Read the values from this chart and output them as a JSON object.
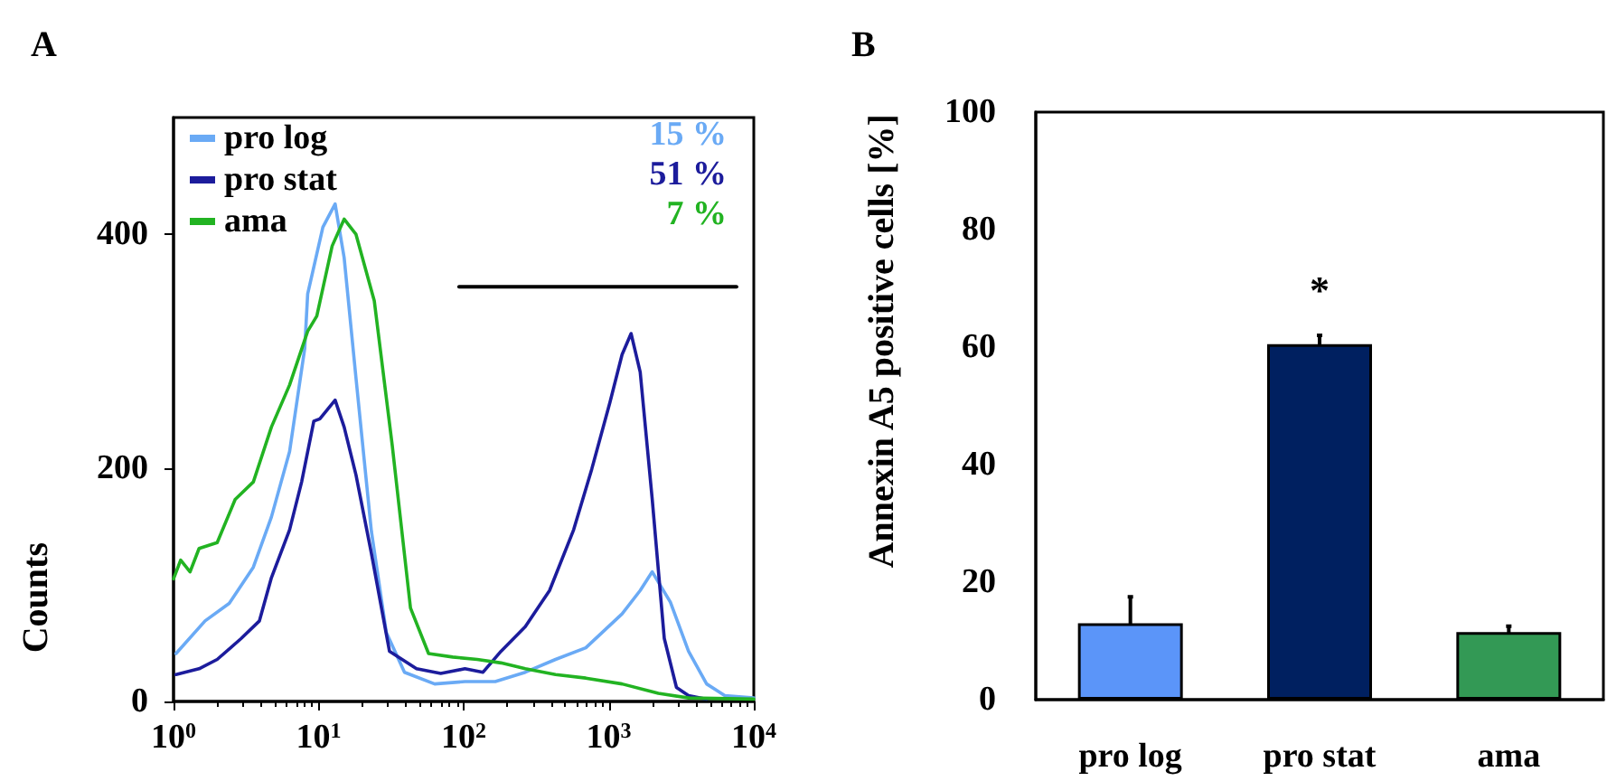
{
  "chart_data": [
    {
      "type": "line",
      "title": "A",
      "ylabel": "Counts",
      "xlim": [
        1,
        10000
      ],
      "ylim": [
        0,
        500
      ],
      "log": "x",
      "xticks": [
        {
          "value": 1,
          "label": "10$^{0}$"
        },
        {
          "value": 10,
          "label": "10$^{1}$"
        },
        {
          "value": 100,
          "label": "10$^{2}$"
        },
        {
          "value": 1000,
          "label": "10$^{3}$"
        },
        {
          "value": 10000,
          "label": "10$^{4}$"
        }
      ],
      "yticks": [
        0,
        200,
        400
      ],
      "grid": false,
      "legend": "top left",
      "marker": "none",
      "annotations": [
        "15 %",
        "51 %",
        "7 %"
      ],
      "series": [
        {
          "name": "pro log",
          "color": "#6aaaf5",
          "x": [
            1.04,
            1.65,
            2.42,
            3.55,
            4.73,
            6.31,
            8.02,
            8.41,
            10.7,
            13.0,
            15.0,
            18.1,
            23.1,
            29.3,
            39.1,
            63.1,
            102,
            165,
            266,
            430,
            695,
            1236,
            1648,
            1995,
            2661,
            3548,
            4732,
            6310,
            10000
          ],
          "values": [
            41,
            69,
            84,
            115,
            158,
            214,
            302,
            349,
            406,
            426,
            380,
            277,
            146,
            59,
            25,
            15,
            17,
            17,
            25,
            36,
            46,
            75,
            95,
            111,
            85,
            43,
            15,
            5,
            3
          ]
        },
        {
          "name": "pro stat",
          "color": "#1c1c9c",
          "x": [
            1.04,
            1.5,
            2.0,
            2.93,
            3.91,
            4.73,
            6.31,
            7.64,
            9.27,
            10.2,
            13.0,
            15.0,
            18.1,
            23.1,
            30.8,
            47.3,
            69.5,
            102,
            136,
            181,
            266,
            391,
            573,
            764,
            1019,
            1236,
            1426,
            1648,
            1995,
            2415,
            2931,
            3548,
            4732
          ],
          "values": [
            23,
            28,
            36,
            54,
            69,
            106,
            147,
            188,
            240,
            242,
            258,
            235,
            194,
            127,
            43,
            28,
            24,
            28,
            25,
            43,
            64,
            95,
            147,
            199,
            256,
            297,
            315,
            282,
            173,
            54,
            12,
            5,
            2
          ]
        },
        {
          "name": "ama",
          "color": "#22b322",
          "x": [
            1,
            1.12,
            1.3,
            1.5,
            2.0,
            2.66,
            3.55,
            4.73,
            6.31,
            8.41,
            9.72,
            12.4,
            15.0,
            18.1,
            24.2,
            32.2,
            43.0,
            57.3,
            84.1,
            124,
            181,
            266,
            430,
            695,
            1236,
            2198,
            3548,
            10000
          ],
          "values": [
            105,
            121,
            111,
            131,
            136,
            173,
            188,
            235,
            271,
            317,
            330,
            390,
            413,
            400,
            343,
            219,
            80,
            41,
            38,
            36,
            33,
            28,
            23,
            20,
            15,
            7,
            3,
            2
          ]
        },
        {
          "type": "line",
          "color": "#000000",
          "x": [
            93,
            7600
          ],
          "values": [
            355,
            355
          ]
        }
      ]
    },
    {
      "type": "bar",
      "title": "B",
      "ylabel": "Annexin A5 positive cells [%]",
      "categories": [
        "pro log",
        "pro stat",
        "ama"
      ],
      "values": [
        13,
        60.5,
        11.5
      ],
      "colors": [
        "#5b95f9",
        "#002060",
        "#339955"
      ],
      "errors": [
        4.5,
        1.5,
        1
      ],
      "ylim": [
        0,
        100
      ],
      "yticks": [
        0,
        20,
        40,
        60,
        80,
        100
      ],
      "grid": false,
      "annotations": [
        "*"
      ]
    }
  ]
}
